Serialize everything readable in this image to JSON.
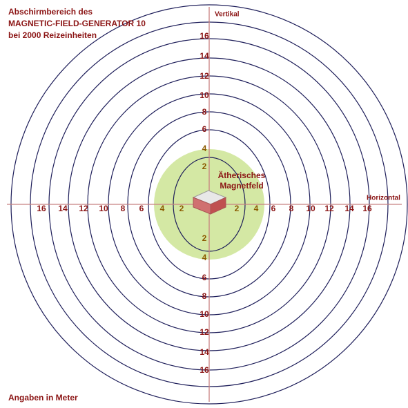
{
  "header": {
    "lines": [
      "Abschirmbereich des",
      "MAGNETIC-FIELD-GENERATOR 10",
      "bei 2000 Reizeinheiten"
    ]
  },
  "axes": {
    "vertical": "Vertikal",
    "horizontal": "Horizontal"
  },
  "field": {
    "lines": [
      "Ätherisches",
      "Magnetfeld"
    ]
  },
  "distances": [
    2,
    4,
    6,
    8,
    10,
    12,
    14,
    16
  ],
  "footer": "Angaben in Meter"
}
